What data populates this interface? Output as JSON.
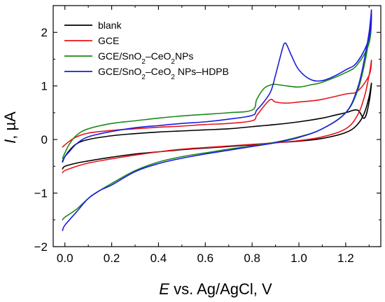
{
  "chart_data": {
    "type": "line",
    "title": "",
    "xlabel": {
      "italic": "E",
      "rest": " vs. Ag/AgCl, V"
    },
    "ylabel": {
      "italic": "I",
      "rest": ", µA"
    },
    "xlim": [
      -0.05,
      1.35
    ],
    "ylim": [
      -2.0,
      2.5
    ],
    "xticks": [
      "0.0",
      "0.2",
      "0.4",
      "0.6",
      "0.8",
      "1.0",
      "1.2"
    ],
    "yticks": [
      "−2",
      "−1",
      "0",
      "1",
      "2"
    ],
    "legend_position": "top-left",
    "series": [
      {
        "name": "blank",
        "legend": [
          {
            "t": "blank"
          }
        ],
        "color": "#000000",
        "x": [
          -0.01,
          0.0,
          0.05,
          0.1,
          0.2,
          0.3,
          0.4,
          0.5,
          0.6,
          0.7,
          0.8,
          0.9,
          1.0,
          1.1,
          1.2,
          1.25,
          1.28,
          1.3,
          1.31,
          1.3,
          1.28,
          1.25,
          1.2,
          1.15,
          1.1,
          1.0,
          0.9,
          0.8,
          0.7,
          0.6,
          0.5,
          0.4,
          0.3,
          0.2,
          0.1,
          0.05,
          0.02,
          0.0,
          -0.01
        ],
        "y": [
          -0.55,
          -0.5,
          -0.44,
          -0.4,
          -0.33,
          -0.27,
          -0.23,
          -0.19,
          -0.16,
          -0.13,
          -0.1,
          -0.06,
          -0.03,
          0.02,
          0.13,
          0.28,
          0.5,
          0.8,
          1.05,
          0.7,
          0.4,
          0.55,
          0.5,
          0.45,
          0.4,
          0.33,
          0.28,
          0.24,
          0.2,
          0.18,
          0.16,
          0.14,
          0.11,
          0.07,
          0.0,
          -0.08,
          -0.2,
          -0.32,
          -0.42
        ]
      },
      {
        "name": "GCE",
        "legend": [
          {
            "t": "GCE"
          }
        ],
        "color": "#e8141b",
        "x": [
          -0.01,
          0.0,
          0.05,
          0.1,
          0.2,
          0.3,
          0.4,
          0.5,
          0.6,
          0.7,
          0.8,
          0.9,
          1.0,
          1.1,
          1.2,
          1.25,
          1.28,
          1.3,
          1.31,
          1.3,
          1.25,
          1.2,
          1.1,
          1.05,
          1.0,
          0.95,
          0.9,
          0.88,
          0.85,
          0.82,
          0.8,
          0.7,
          0.6,
          0.5,
          0.4,
          0.3,
          0.2,
          0.1,
          0.05,
          0.02,
          0.0,
          -0.01
        ],
        "y": [
          -0.62,
          -0.58,
          -0.5,
          -0.44,
          -0.36,
          -0.29,
          -0.23,
          -0.18,
          -0.15,
          -0.12,
          -0.09,
          -0.06,
          -0.02,
          0.05,
          0.2,
          0.45,
          0.8,
          1.2,
          1.48,
          1.2,
          0.9,
          0.85,
          0.75,
          0.72,
          0.7,
          0.68,
          0.7,
          0.75,
          0.62,
          0.45,
          0.35,
          0.3,
          0.28,
          0.25,
          0.23,
          0.2,
          0.17,
          0.12,
          0.05,
          -0.03,
          -0.1,
          -0.14
        ]
      },
      {
        "name": "GCE/SnO2–CeO2NPs",
        "legend": [
          {
            "t": "GCE/SnO"
          },
          {
            "t": "2",
            "sub": true
          },
          {
            "t": "–CeO"
          },
          {
            "t": "2",
            "sub": true
          },
          {
            "t": "NPs"
          }
        ],
        "color": "#1a8a1a",
        "x": [
          -0.01,
          0.0,
          0.05,
          0.1,
          0.15,
          0.2,
          0.3,
          0.4,
          0.5,
          0.6,
          0.7,
          0.8,
          0.9,
          1.0,
          1.1,
          1.2,
          1.25,
          1.28,
          1.3,
          1.31,
          1.3,
          1.25,
          1.2,
          1.1,
          1.05,
          1.0,
          0.95,
          0.9,
          0.88,
          0.85,
          0.82,
          0.8,
          0.7,
          0.6,
          0.5,
          0.4,
          0.3,
          0.2,
          0.1,
          0.05,
          0.02,
          0.0,
          -0.01
        ],
        "y": [
          -1.5,
          -1.45,
          -1.3,
          -1.1,
          -0.95,
          -0.82,
          -0.58,
          -0.42,
          -0.32,
          -0.25,
          -0.18,
          -0.12,
          -0.05,
          0.05,
          0.2,
          0.5,
          0.9,
          1.4,
          1.9,
          2.35,
          1.8,
          1.4,
          1.25,
          1.07,
          1.02,
          0.98,
          1.0,
          1.03,
          1.02,
          0.95,
          0.75,
          0.55,
          0.5,
          0.47,
          0.44,
          0.4,
          0.35,
          0.3,
          0.2,
          0.08,
          -0.08,
          -0.25,
          -0.35
        ]
      },
      {
        "name": "GCE/SnO2–CeO2 NPs–HDPB",
        "legend": [
          {
            "t": "GCE/SnO"
          },
          {
            "t": "2",
            "sub": true
          },
          {
            "t": "–CeO"
          },
          {
            "t": "2",
            "sub": true
          },
          {
            "t": " NPs–HDPB"
          }
        ],
        "color": "#1c1ce0",
        "x": [
          -0.01,
          0.0,
          0.05,
          0.1,
          0.15,
          0.2,
          0.3,
          0.4,
          0.5,
          0.6,
          0.7,
          0.8,
          0.9,
          1.0,
          1.1,
          1.2,
          1.25,
          1.28,
          1.3,
          1.31,
          1.3,
          1.25,
          1.2,
          1.15,
          1.1,
          1.05,
          1.0,
          0.97,
          0.95,
          0.94,
          0.93,
          0.9,
          0.88,
          0.85,
          0.82,
          0.8,
          0.7,
          0.6,
          0.5,
          0.4,
          0.3,
          0.2,
          0.1,
          0.05,
          0.02,
          0.0,
          -0.01
        ],
        "y": [
          -1.7,
          -1.6,
          -1.35,
          -1.1,
          -0.95,
          -0.85,
          -0.6,
          -0.45,
          -0.35,
          -0.27,
          -0.2,
          -0.13,
          -0.06,
          0.04,
          0.2,
          0.5,
          0.95,
          1.5,
          2.0,
          2.42,
          1.9,
          1.45,
          1.3,
          1.18,
          1.1,
          1.12,
          1.3,
          1.55,
          1.75,
          1.8,
          1.7,
          1.2,
          0.9,
          0.7,
          0.55,
          0.45,
          0.38,
          0.33,
          0.3,
          0.26,
          0.22,
          0.15,
          0.05,
          -0.08,
          -0.22,
          -0.32,
          -0.4
        ]
      }
    ]
  }
}
